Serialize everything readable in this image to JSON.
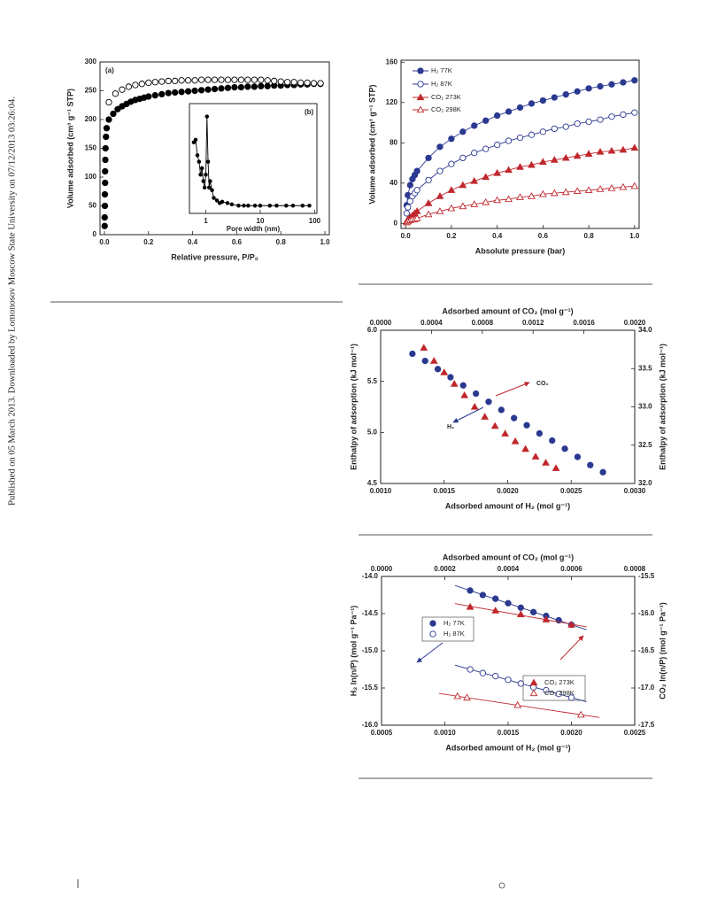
{
  "sidebar": "Published on 05 March 2013. Downloaded by Lomonosov Moscow State University on 07/12/2013 03:26:04.",
  "chart_data": [
    {
      "type": "scatter",
      "label": "(a)",
      "xlabel": "Relative pressure, P/P₀",
      "ylabel": "Volume adsorbed (cm³ g⁻¹ STP)",
      "xlim": [
        -0.02,
        1.02
      ],
      "ylim": [
        0,
        300
      ],
      "xticks": [
        {
          "value": 0,
          "label": "0.0"
        },
        {
          "value": 0.2,
          "label": "0.2"
        },
        {
          "value": 0.4,
          "label": "0.4"
        },
        {
          "value": 0.6,
          "label": "0.6"
        },
        {
          "value": 0.8,
          "label": "0.8"
        },
        {
          "value": 1,
          "label": "1.0"
        }
      ],
      "yticks": [
        0,
        50,
        100,
        150,
        200,
        250,
        300
      ],
      "series": [
        {
          "color": "#000000",
          "marker": "circle",
          "filled": true,
          "x": [
            0.001,
            0.001,
            0.002,
            0.002,
            0.003,
            0.003,
            0.004,
            0.005,
            0.007,
            0.01,
            0.02,
            0.04,
            0.06,
            0.08,
            0.1,
            0.12,
            0.14,
            0.16,
            0.18,
            0.2,
            0.23,
            0.26,
            0.29,
            0.32,
            0.35,
            0.38,
            0.41,
            0.44,
            0.47,
            0.5,
            0.53,
            0.56,
            0.59,
            0.62,
            0.65,
            0.68,
            0.71,
            0.74,
            0.77,
            0.8,
            0.83,
            0.86,
            0.89,
            0.92,
            0.95,
            0.98
          ],
          "values": [
            15,
            30,
            50,
            70,
            90,
            110,
            130,
            150,
            170,
            185,
            200,
            210,
            218,
            223,
            227,
            231,
            234,
            236,
            238,
            240,
            242,
            244,
            246,
            247,
            248,
            249,
            250,
            251,
            252,
            253,
            254,
            255,
            256,
            256,
            257,
            257,
            258,
            258,
            259,
            259,
            260,
            260,
            261,
            261,
            262,
            262
          ]
        },
        {
          "color": "#000000",
          "marker": "circle",
          "filled": false,
          "x": [
            0.02,
            0.05,
            0.08,
            0.11,
            0.14,
            0.17,
            0.2,
            0.23,
            0.26,
            0.29,
            0.32,
            0.35,
            0.38,
            0.41,
            0.44,
            0.47,
            0.5,
            0.53,
            0.56,
            0.59,
            0.62,
            0.65,
            0.68,
            0.71,
            0.74,
            0.77,
            0.8,
            0.83,
            0.86,
            0.89,
            0.92,
            0.95,
            0.98
          ],
          "values": [
            230,
            245,
            252,
            257,
            260,
            262,
            264,
            265,
            266,
            267,
            267,
            268,
            268,
            268,
            269,
            269,
            269,
            269,
            269,
            269,
            269,
            269,
            269,
            269,
            268,
            267,
            266,
            265,
            265,
            264,
            264,
            263,
            263
          ]
        }
      ]
    },
    {
      "type": "line",
      "label": "(b)",
      "xlabel": "Pore width (nm)",
      "xscale": "log",
      "xlim": [
        0.5,
        110
      ],
      "ylim": [
        0,
        0.85
      ],
      "xticks": [
        1,
        10,
        100
      ],
      "series": [
        {
          "color": "#000000",
          "marker": "dot",
          "filled": true,
          "x": [
            0.6,
            0.65,
            0.7,
            0.75,
            0.8,
            0.85,
            0.9,
            0.95,
            1.0,
            1.05,
            1.1,
            1.15,
            1.2,
            1.3,
            1.4,
            1.6,
            1.8,
            2,
            2.5,
            3,
            4,
            5,
            6,
            8,
            10,
            15,
            20,
            30,
            40,
            60,
            80
          ],
          "values": [
            0.55,
            0.57,
            0.45,
            0.4,
            0.3,
            0.35,
            0.25,
            0.2,
            0.3,
            0.75,
            0.4,
            0.2,
            0.25,
            0.18,
            0.12,
            0.1,
            0.08,
            0.09,
            0.08,
            0.07,
            0.06,
            0.06,
            0.06,
            0.06,
            0.06,
            0.06,
            0.06,
            0.06,
            0.06,
            0.06,
            0.06
          ]
        }
      ]
    },
    {
      "type": "line",
      "xlabel": "Absolute pressure (bar)",
      "ylabel": "Volume adsorbed (cm³ g⁻¹ STP)",
      "xlim": [
        -0.02,
        1.02
      ],
      "ylim": [
        -5,
        162
      ],
      "xticks": [
        {
          "value": 0,
          "label": "0.0"
        },
        {
          "value": 0.2,
          "label": "0.2"
        },
        {
          "value": 0.4,
          "label": "0.4"
        },
        {
          "value": 0.6,
          "label": "0.6"
        },
        {
          "value": 0.8,
          "label": "0.8"
        },
        {
          "value": 1,
          "label": "1.0"
        }
      ],
      "yticks": [
        0,
        40,
        80,
        120,
        160
      ],
      "series": [
        {
          "name": "H₂ 77K",
          "color": "#2b3990",
          "marker": "circle",
          "filled": true,
          "x": [
            0.005,
            0.01,
            0.02,
            0.03,
            0.04,
            0.05,
            0.1,
            0.15,
            0.2,
            0.25,
            0.3,
            0.35,
            0.4,
            0.45,
            0.5,
            0.55,
            0.6,
            0.65,
            0.7,
            0.75,
            0.8,
            0.85,
            0.9,
            0.95,
            1.0
          ],
          "values": [
            18,
            28,
            38,
            44,
            48,
            52,
            65,
            76,
            84,
            91,
            97,
            102,
            107,
            111,
            115,
            119,
            122,
            125,
            128,
            131,
            134,
            136,
            138,
            140,
            142
          ]
        },
        {
          "name": "H₂ 87K",
          "color": "#2b3990",
          "marker": "circle",
          "filled": false,
          "x": [
            0.005,
            0.01,
            0.02,
            0.03,
            0.04,
            0.05,
            0.1,
            0.15,
            0.2,
            0.25,
            0.3,
            0.35,
            0.4,
            0.45,
            0.5,
            0.55,
            0.6,
            0.65,
            0.7,
            0.75,
            0.8,
            0.85,
            0.9,
            0.95,
            1.0
          ],
          "values": [
            10,
            16,
            22,
            27,
            30,
            33,
            43,
            52,
            59,
            65,
            70,
            74,
            78,
            82,
            85,
            88,
            91,
            94,
            96,
            99,
            101,
            103,
            106,
            108,
            110
          ]
        },
        {
          "name": "CO₂ 273K",
          "color": "#c0272d",
          "marker": "triangle",
          "filled": true,
          "x": [
            0.005,
            0.01,
            0.02,
            0.03,
            0.04,
            0.05,
            0.1,
            0.15,
            0.2,
            0.25,
            0.3,
            0.35,
            0.4,
            0.45,
            0.5,
            0.55,
            0.6,
            0.65,
            0.7,
            0.75,
            0.8,
            0.85,
            0.9,
            0.95,
            1.0
          ],
          "values": [
            2,
            4,
            6,
            8,
            10,
            12,
            20,
            27,
            33,
            38,
            42,
            46,
            50,
            53,
            56,
            58,
            61,
            63,
            65,
            67,
            69,
            71,
            72,
            73,
            75
          ]
        },
        {
          "name": "CO₂ 298K",
          "color": "#c0272d",
          "marker": "triangle",
          "filled": false,
          "x": [
            0.005,
            0.01,
            0.02,
            0.03,
            0.04,
            0.05,
            0.1,
            0.15,
            0.2,
            0.25,
            0.3,
            0.35,
            0.4,
            0.45,
            0.5,
            0.55,
            0.6,
            0.65,
            0.7,
            0.75,
            0.8,
            0.85,
            0.9,
            0.95,
            1.0
          ],
          "values": [
            1,
            2,
            3,
            4,
            4,
            5,
            9,
            12,
            15,
            17,
            19,
            21,
            23,
            24,
            26,
            27,
            29,
            30,
            31,
            32,
            33,
            34,
            35,
            36,
            37
          ]
        }
      ]
    },
    {
      "type": "scatter",
      "xlabel": "Adsorbed amount of H₂ (mol g⁻¹)",
      "x2label": "Adsorbed amount of CO₂ (mol g⁻¹)",
      "ylabel": "Enthalpy of adsorption (kJ mol⁻¹)",
      "y2label": "Enthalpy of adsorption (kJ mol⁻¹)",
      "xlim": [
        0.001,
        0.003
      ],
      "x2lim": [
        0,
        0.002
      ],
      "ylim": [
        4.5,
        6.0
      ],
      "y2lim": [
        32.0,
        34.0
      ],
      "xticks": [
        {
          "value": 0.001,
          "label": "0.0010"
        },
        {
          "value": 0.0015,
          "label": "0.0015"
        },
        {
          "value": 0.002,
          "label": "0.0020"
        },
        {
          "value": 0.0025,
          "label": "0.0025"
        },
        {
          "value": 0.003,
          "label": "0.0030"
        }
      ],
      "x2ticks": [
        {
          "value": 0,
          "label": "0.0000"
        },
        {
          "value": 0.0004,
          "label": "0.0004"
        },
        {
          "value": 0.0008,
          "label": "0.0008"
        },
        {
          "value": 0.0012,
          "label": "0.0012"
        },
        {
          "value": 0.0016,
          "label": "0.0016"
        },
        {
          "value": 0.002,
          "label": "0.0020"
        }
      ],
      "yticks": [
        4.5,
        {
          "value": 5,
          "label": "5.0"
        },
        5.5,
        {
          "value": 6,
          "label": "6.0"
        }
      ],
      "y2ticks": [
        {
          "value": 32,
          "label": "32.0"
        },
        32.5,
        {
          "value": 33,
          "label": "33.0"
        },
        33.5,
        {
          "value": 34,
          "label": "34.0"
        }
      ],
      "annotations": [
        "CO₂",
        "H₂"
      ],
      "series": [
        {
          "color": "#2b3990",
          "marker": "circle",
          "filled": true,
          "x": [
            0.00125,
            0.00135,
            0.00145,
            0.00155,
            0.00165,
            0.00175,
            0.00185,
            0.00195,
            0.00205,
            0.00215,
            0.00225,
            0.00235,
            0.00245,
            0.00255,
            0.00265,
            0.00275
          ],
          "values": [
            5.77,
            5.7,
            5.62,
            5.54,
            5.46,
            5.38,
            5.3,
            5.22,
            5.14,
            5.07,
            4.99,
            4.92,
            4.84,
            4.76,
            4.68,
            4.61
          ]
        },
        {
          "color": "#c0272d",
          "marker": "triangle",
          "filled": true,
          "xaxis": "x2",
          "axis": "y2",
          "x": [
            0.00034,
            0.00042,
            0.0005,
            0.00058,
            0.00066,
            0.00074,
            0.00082,
            0.0009,
            0.00098,
            0.00106,
            0.00114,
            0.00122,
            0.0013,
            0.00138
          ],
          "values": [
            33.77,
            33.6,
            33.45,
            33.3,
            33.15,
            33.0,
            32.87,
            32.75,
            32.65,
            32.55,
            32.45,
            32.35,
            32.27,
            32.2
          ]
        }
      ]
    },
    {
      "type": "scatter",
      "xlabel": "Adsorbed amount of H₂ (mol g⁻¹)",
      "x2label": "Adsorbed amount of CO₂ (mol g⁻¹)",
      "ylabel": "H₂ ln(n/P) (mol g⁻¹ Pa⁻¹)",
      "y2label": "CO₂ ln(n/P) (mol g⁻¹ Pa⁻¹)",
      "xlim": [
        0.0005,
        0.0025
      ],
      "x2lim": [
        0,
        0.0008
      ],
      "ylim": [
        -16,
        -14
      ],
      "y2lim": [
        -17.5,
        -15.5
      ],
      "xticks": [
        {
          "value": 0.0005,
          "label": "0.0005"
        },
        {
          "value": 0.001,
          "label": "0.0010"
        },
        {
          "value": 0.0015,
          "label": "0.0015"
        },
        {
          "value": 0.002,
          "label": "0.0020"
        },
        {
          "value": 0.0025,
          "label": "0.0025"
        }
      ],
      "x2ticks": [
        {
          "value": 0,
          "label": "0.0000"
        },
        {
          "value": 0.0002,
          "label": "0.0002"
        },
        {
          "value": 0.0004,
          "label": "0.0004"
        },
        {
          "value": 0.0006,
          "label": "0.0006"
        },
        {
          "value": 0.0008,
          "label": "0.0008"
        }
      ],
      "yticks": [
        {
          "value": -16,
          "label": "-16.0"
        },
        -15.5,
        {
          "value": -15,
          "label": "-15.0"
        },
        -14.5,
        {
          "value": -14,
          "label": "-14.0"
        }
      ],
      "y2ticks": [
        -17.5,
        {
          "value": -17,
          "label": "-17.0"
        },
        -16.5,
        {
          "value": -16,
          "label": "-16.0"
        },
        -15.5
      ],
      "series": [
        {
          "name": "H₂ 77K",
          "color": "#2b3990",
          "marker": "circle",
          "filled": true,
          "fit": true,
          "x": [
            0.0012,
            0.0013,
            0.0014,
            0.0015,
            0.0016,
            0.0017,
            0.0018,
            0.0019,
            0.002
          ],
          "values": [
            -14.19,
            -14.25,
            -14.3,
            -14.36,
            -14.42,
            -14.48,
            -14.53,
            -14.59,
            -14.65
          ]
        },
        {
          "name": "H₂ 87K",
          "color": "#2b3990",
          "marker": "circle",
          "filled": false,
          "fit": true,
          "x": [
            0.0012,
            0.0013,
            0.0014,
            0.0015,
            0.0016,
            0.0017,
            0.0018,
            0.0019,
            0.002
          ],
          "values": [
            -15.25,
            -15.3,
            -15.34,
            -15.39,
            -15.44,
            -15.49,
            -15.53,
            -15.58,
            -15.63
          ]
        },
        {
          "name": "CO₂ 273K",
          "color": "#c0272d",
          "marker": "triangle",
          "filled": true,
          "fit": true,
          "xaxis": "x2",
          "axis": "y2",
          "x": [
            0.00028,
            0.00036,
            0.00044,
            0.00052,
            0.0006
          ],
          "values": [
            -15.91,
            -15.96,
            -16.01,
            -16.08,
            -16.15
          ]
        },
        {
          "name": "CO₂ 298K",
          "color": "#c0272d",
          "marker": "triangle",
          "filled": false,
          "fit": true,
          "xaxis": "x2",
          "axis": "y2",
          "x": [
            0.00024,
            0.00027,
            0.00043,
            0.00063
          ],
          "values": [
            -17.11,
            -17.13,
            -17.23,
            -17.36
          ]
        }
      ]
    }
  ]
}
